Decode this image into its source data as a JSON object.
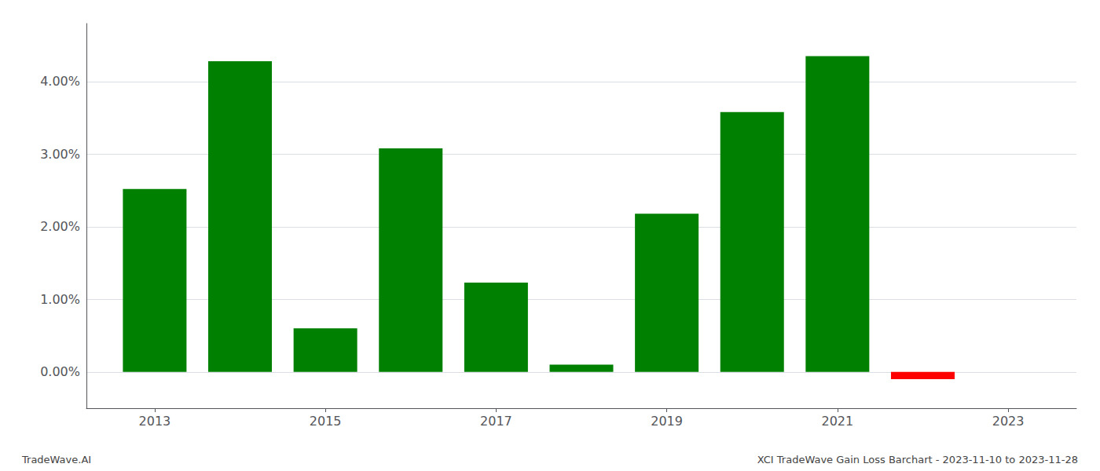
{
  "chart_data": {
    "type": "bar",
    "x": [
      2013,
      2014,
      2015,
      2016,
      2017,
      2018,
      2019,
      2020,
      2021,
      2022
    ],
    "values": [
      0.0252,
      0.0428,
      0.006,
      0.0308,
      0.0123,
      0.001,
      0.0218,
      0.0358,
      0.0435,
      -0.001
    ],
    "colors": [
      "#008000",
      "#008000",
      "#008000",
      "#008000",
      "#008000",
      "#008000",
      "#008000",
      "#008000",
      "#008000",
      "#ff0000"
    ],
    "xlim": [
      2012.2,
      2023.8
    ],
    "xticks": [
      2013,
      2015,
      2017,
      2019,
      2021,
      2023
    ],
    "ylim": [
      -0.005,
      0.048
    ],
    "yticks": [
      {
        "value": 0,
        "label": "0.00%"
      },
      {
        "value": 0.01,
        "label": "1.00%"
      },
      {
        "value": 0.02,
        "label": "2.00%"
      },
      {
        "value": 0.03,
        "label": "3.00%"
      },
      {
        "value": 0.04,
        "label": "4.00%"
      }
    ],
    "grid": true,
    "annotations": [
      "TradeWave.AI",
      "XCI TradeWave Gain Loss Barchart - 2023-11-10 to 2023-11-28"
    ]
  }
}
